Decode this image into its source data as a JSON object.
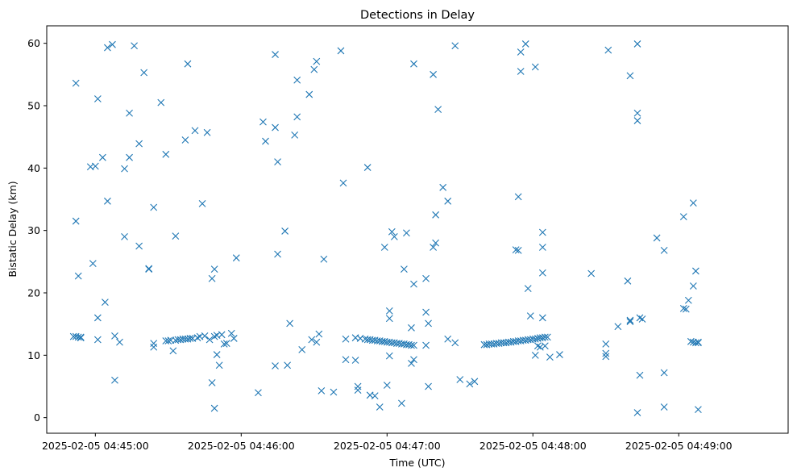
{
  "chart_data": {
    "type": "scatter",
    "title": "Detections in Delay",
    "xlabel": "Time (UTC)",
    "ylabel": "Bistatic Delay (km)",
    "x_tick_labels": [
      "2025-02-05 04:45:00",
      "2025-02-05 04:46:00",
      "2025-02-05 04:47:00",
      "2025-02-05 04:48:00",
      "2025-02-05 04:49:00"
    ],
    "y_ticks": [
      0,
      10,
      20,
      30,
      40,
      50,
      60
    ],
    "xlim": [
      "2025-02-05 04:44:40",
      "2025-02-05 04:49:45"
    ],
    "ylim": [
      -2.5,
      62.8
    ],
    "marker": "x",
    "color": "#1f77b4",
    "grid": false,
    "series": [
      {
        "points": [
          [
            "2025-02-05 04:44:52",
            53.6
          ],
          [
            "2025-02-05 04:44:52",
            31.5
          ],
          [
            "2025-02-05 04:44:53",
            22.7
          ],
          [
            "2025-02-05 04:44:51",
            13.0
          ],
          [
            "2025-02-05 04:44:52",
            13.0
          ],
          [
            "2025-02-05 04:44:53",
            12.9
          ],
          [
            "2025-02-05 04:44:54",
            12.9
          ],
          [
            "2025-02-05 04:44:54",
            12.8
          ],
          [
            "2025-02-05 04:44:58",
            40.2
          ],
          [
            "2025-02-05 04:44:59",
            24.7
          ],
          [
            "2025-02-05 04:45:00",
            40.3
          ],
          [
            "2025-02-05 04:45:01",
            51.1
          ],
          [
            "2025-02-05 04:45:01",
            16.0
          ],
          [
            "2025-02-05 04:45:01",
            12.5
          ],
          [
            "2025-02-05 04:45:03",
            41.7
          ],
          [
            "2025-02-05 04:45:04",
            18.5
          ],
          [
            "2025-02-05 04:45:05",
            59.3
          ],
          [
            "2025-02-05 04:45:05",
            34.7
          ],
          [
            "2025-02-05 04:45:07",
            59.8
          ],
          [
            "2025-02-05 04:45:08",
            6.0
          ],
          [
            "2025-02-05 04:45:08",
            13.1
          ],
          [
            "2025-02-05 04:45:10",
            12.1
          ],
          [
            "2025-02-05 04:45:12",
            39.9
          ],
          [
            "2025-02-05 04:45:12",
            29.0
          ],
          [
            "2025-02-05 04:45:14",
            48.8
          ],
          [
            "2025-02-05 04:45:14",
            41.7
          ],
          [
            "2025-02-05 04:45:16",
            59.6
          ],
          [
            "2025-02-05 04:45:18",
            43.9
          ],
          [
            "2025-02-05 04:45:18",
            27.5
          ],
          [
            "2025-02-05 04:45:20",
            55.3
          ],
          [
            "2025-02-05 04:45:22",
            23.8
          ],
          [
            "2025-02-05 04:45:22",
            23.9
          ],
          [
            "2025-02-05 04:45:24",
            33.7
          ],
          [
            "2025-02-05 04:45:24",
            11.9
          ],
          [
            "2025-02-05 04:45:24",
            11.3
          ],
          [
            "2025-02-05 04:45:27",
            50.5
          ],
          [
            "2025-02-05 04:45:29",
            42.2
          ],
          [
            "2025-02-05 04:45:29",
            12.3
          ],
          [
            "2025-02-05 04:45:30",
            12.3
          ],
          [
            "2025-02-05 04:45:31",
            12.4
          ],
          [
            "2025-02-05 04:45:32",
            10.7
          ],
          [
            "2025-02-05 04:45:33",
            12.4
          ],
          [
            "2025-02-05 04:45:34",
            12.5
          ],
          [
            "2025-02-05 04:45:35",
            12.5
          ],
          [
            "2025-02-05 04:45:36",
            12.6
          ],
          [
            "2025-02-05 04:45:37",
            12.6
          ],
          [
            "2025-02-05 04:45:38",
            12.6
          ],
          [
            "2025-02-05 04:45:39",
            12.7
          ],
          [
            "2025-02-05 04:45:40",
            12.7
          ],
          [
            "2025-02-05 04:45:33",
            29.1
          ],
          [
            "2025-02-05 04:45:37",
            44.5
          ],
          [
            "2025-02-05 04:45:38",
            56.7
          ],
          [
            "2025-02-05 04:45:41",
            46.0
          ],
          [
            "2025-02-05 04:45:42",
            12.8
          ],
          [
            "2025-02-05 04:45:43",
            13.0
          ],
          [
            "2025-02-05 04:45:44",
            34.3
          ],
          [
            "2025-02-05 04:45:45",
            13.1
          ],
          [
            "2025-02-05 04:45:46",
            45.7
          ],
          [
            "2025-02-05 04:45:47",
            12.5
          ],
          [
            "2025-02-05 04:45:48",
            22.3
          ],
          [
            "2025-02-05 04:45:48",
            5.6
          ],
          [
            "2025-02-05 04:45:49",
            23.8
          ],
          [
            "2025-02-05 04:45:49",
            13.0
          ],
          [
            "2025-02-05 04:45:49",
            1.5
          ],
          [
            "2025-02-05 04:45:50",
            10.1
          ],
          [
            "2025-02-05 04:45:50",
            13.2
          ],
          [
            "2025-02-05 04:45:51",
            8.4
          ],
          [
            "2025-02-05 04:45:52",
            13.3
          ],
          [
            "2025-02-05 04:45:53",
            11.8
          ],
          [
            "2025-02-05 04:45:54",
            11.9
          ],
          [
            "2025-02-05 04:45:56",
            13.5
          ],
          [
            "2025-02-05 04:45:57",
            12.7
          ],
          [
            "2025-02-05 04:45:58",
            25.6
          ],
          [
            "2025-02-05 04:46:07",
            4.0
          ],
          [
            "2025-02-05 04:46:09",
            47.4
          ],
          [
            "2025-02-05 04:46:10",
            44.3
          ],
          [
            "2025-02-05 04:46:14",
            58.2
          ],
          [
            "2025-02-05 04:46:14",
            46.5
          ],
          [
            "2025-02-05 04:46:14",
            8.3
          ],
          [
            "2025-02-05 04:46:15",
            41.0
          ],
          [
            "2025-02-05 04:46:15",
            26.2
          ],
          [
            "2025-02-05 04:46:18",
            29.9
          ],
          [
            "2025-02-05 04:46:19",
            8.4
          ],
          [
            "2025-02-05 04:46:20",
            15.1
          ],
          [
            "2025-02-05 04:46:22",
            45.3
          ],
          [
            "2025-02-05 04:46:23",
            54.1
          ],
          [
            "2025-02-05 04:46:23",
            48.2
          ],
          [
            "2025-02-05 04:46:25",
            10.9
          ],
          [
            "2025-02-05 04:46:28",
            51.8
          ],
          [
            "2025-02-05 04:46:29",
            12.5
          ],
          [
            "2025-02-05 04:46:30",
            55.8
          ],
          [
            "2025-02-05 04:46:31",
            57.1
          ],
          [
            "2025-02-05 04:46:31",
            12.1
          ],
          [
            "2025-02-05 04:46:32",
            13.4
          ],
          [
            "2025-02-05 04:46:33",
            4.3
          ],
          [
            "2025-02-05 04:46:34",
            25.4
          ],
          [
            "2025-02-05 04:46:38",
            4.1
          ],
          [
            "2025-02-05 04:46:41",
            58.8
          ],
          [
            "2025-02-05 04:46:42",
            37.6
          ],
          [
            "2025-02-05 04:46:43",
            12.6
          ],
          [
            "2025-02-05 04:46:43",
            9.3
          ],
          [
            "2025-02-05 04:46:47",
            12.8
          ],
          [
            "2025-02-05 04:46:47",
            9.2
          ],
          [
            "2025-02-05 04:46:48",
            4.4
          ],
          [
            "2025-02-05 04:46:48",
            5.0
          ],
          [
            "2025-02-05 04:46:49",
            12.7
          ],
          [
            "2025-02-05 04:46:51",
            12.6
          ],
          [
            "2025-02-05 04:46:52",
            40.1
          ],
          [
            "2025-02-05 04:46:53",
            3.6
          ],
          [
            "2025-02-05 04:46:55",
            3.5
          ],
          [
            "2025-02-05 04:46:57",
            1.7
          ],
          [
            "2025-02-05 04:46:52",
            12.5
          ],
          [
            "2025-02-05 04:46:53",
            12.5
          ],
          [
            "2025-02-05 04:46:54",
            12.4
          ],
          [
            "2025-02-05 04:46:55",
            12.4
          ],
          [
            "2025-02-05 04:46:56",
            12.3
          ],
          [
            "2025-02-05 04:46:57",
            12.3
          ],
          [
            "2025-02-05 04:46:58",
            12.2
          ],
          [
            "2025-02-05 04:46:59",
            12.2
          ],
          [
            "2025-02-05 04:47:00",
            12.1
          ],
          [
            "2025-02-05 04:47:01",
            12.1
          ],
          [
            "2025-02-05 04:47:02",
            12.0
          ],
          [
            "2025-02-05 04:47:03",
            12.0
          ],
          [
            "2025-02-05 04:47:04",
            11.9
          ],
          [
            "2025-02-05 04:47:05",
            11.9
          ],
          [
            "2025-02-05 04:47:06",
            11.8
          ],
          [
            "2025-02-05 04:47:07",
            11.8
          ],
          [
            "2025-02-05 04:47:08",
            11.7
          ],
          [
            "2025-02-05 04:47:09",
            11.7
          ],
          [
            "2025-02-05 04:47:10",
            11.6
          ],
          [
            "2025-02-05 04:47:11",
            11.6
          ],
          [
            "2025-02-05 04:46:59",
            27.3
          ],
          [
            "2025-02-05 04:47:00",
            5.2
          ],
          [
            "2025-02-05 04:47:01",
            17.1
          ],
          [
            "2025-02-05 04:47:01",
            15.9
          ],
          [
            "2025-02-05 04:47:01",
            9.9
          ],
          [
            "2025-02-05 04:47:02",
            29.8
          ],
          [
            "2025-02-05 04:47:03",
            29.0
          ],
          [
            "2025-02-05 04:47:06",
            2.3
          ],
          [
            "2025-02-05 04:47:07",
            23.8
          ],
          [
            "2025-02-05 04:47:08",
            29.6
          ],
          [
            "2025-02-05 04:47:10",
            14.4
          ],
          [
            "2025-02-05 04:47:10",
            8.7
          ],
          [
            "2025-02-05 04:47:11",
            9.3
          ],
          [
            "2025-02-05 04:47:11",
            21.4
          ],
          [
            "2025-02-05 04:47:11",
            56.7
          ],
          [
            "2025-02-05 04:47:16",
            16.9
          ],
          [
            "2025-02-05 04:47:16",
            22.3
          ],
          [
            "2025-02-05 04:47:16",
            11.6
          ],
          [
            "2025-02-05 04:47:17",
            15.1
          ],
          [
            "2025-02-05 04:47:17",
            5.0
          ],
          [
            "2025-02-05 04:47:19",
            55.0
          ],
          [
            "2025-02-05 04:47:19",
            27.3
          ],
          [
            "2025-02-05 04:47:20",
            28.0
          ],
          [
            "2025-02-05 04:47:20",
            32.5
          ],
          [
            "2025-02-05 04:47:21",
            49.4
          ],
          [
            "2025-02-05 04:47:23",
            36.9
          ],
          [
            "2025-02-05 04:47:25",
            34.7
          ],
          [
            "2025-02-05 04:47:25",
            12.6
          ],
          [
            "2025-02-05 04:47:28",
            59.6
          ],
          [
            "2025-02-05 04:47:28",
            12.0
          ],
          [
            "2025-02-05 04:47:30",
            6.1
          ],
          [
            "2025-02-05 04:47:34",
            5.4
          ],
          [
            "2025-02-05 04:47:36",
            5.8
          ],
          [
            "2025-02-05 04:47:40",
            11.7
          ],
          [
            "2025-02-05 04:47:41",
            11.7
          ],
          [
            "2025-02-05 04:47:42",
            11.8
          ],
          [
            "2025-02-05 04:47:43",
            11.8
          ],
          [
            "2025-02-05 04:47:44",
            11.8
          ],
          [
            "2025-02-05 04:47:45",
            11.9
          ],
          [
            "2025-02-05 04:47:46",
            11.9
          ],
          [
            "2025-02-05 04:47:47",
            12.0
          ],
          [
            "2025-02-05 04:47:48",
            12.0
          ],
          [
            "2025-02-05 04:47:49",
            12.0
          ],
          [
            "2025-02-05 04:47:50",
            12.1
          ],
          [
            "2025-02-05 04:47:51",
            12.1
          ],
          [
            "2025-02-05 04:47:52",
            12.2
          ],
          [
            "2025-02-05 04:47:53",
            12.2
          ],
          [
            "2025-02-05 04:47:54",
            12.3
          ],
          [
            "2025-02-05 04:47:55",
            12.3
          ],
          [
            "2025-02-05 04:47:56",
            12.4
          ],
          [
            "2025-02-05 04:47:57",
            12.4
          ],
          [
            "2025-02-05 04:47:58",
            12.5
          ],
          [
            "2025-02-05 04:47:59",
            12.5
          ],
          [
            "2025-02-05 04:48:00",
            12.6
          ],
          [
            "2025-02-05 04:48:01",
            12.6
          ],
          [
            "2025-02-05 04:48:02",
            12.7
          ],
          [
            "2025-02-05 04:48:03",
            12.8
          ],
          [
            "2025-02-05 04:48:04",
            12.8
          ],
          [
            "2025-02-05 04:48:05",
            12.9
          ],
          [
            "2025-02-05 04:48:06",
            12.9
          ],
          [
            "2025-02-05 04:47:53",
            26.9
          ],
          [
            "2025-02-05 04:47:54",
            26.8
          ],
          [
            "2025-02-05 04:47:54",
            35.4
          ],
          [
            "2025-02-05 04:47:55",
            55.5
          ],
          [
            "2025-02-05 04:47:55",
            58.6
          ],
          [
            "2025-02-05 04:47:57",
            59.9
          ],
          [
            "2025-02-05 04:47:58",
            20.7
          ],
          [
            "2025-02-05 04:47:59",
            16.3
          ],
          [
            "2025-02-05 04:48:01",
            56.2
          ],
          [
            "2025-02-05 04:48:01",
            10.0
          ],
          [
            "2025-02-05 04:48:02",
            11.5
          ],
          [
            "2025-02-05 04:48:03",
            11.3
          ],
          [
            "2025-02-05 04:48:04",
            29.7
          ],
          [
            "2025-02-05 04:48:04",
            27.3
          ],
          [
            "2025-02-05 04:48:04",
            23.2
          ],
          [
            "2025-02-05 04:48:04",
            16.0
          ],
          [
            "2025-02-05 04:48:05",
            11.5
          ],
          [
            "2025-02-05 04:48:07",
            9.7
          ],
          [
            "2025-02-05 04:48:11",
            10.1
          ],
          [
            "2025-02-05 04:48:24",
            23.1
          ],
          [
            "2025-02-05 04:48:30",
            10.3
          ],
          [
            "2025-02-05 04:48:30",
            9.8
          ],
          [
            "2025-02-05 04:48:30",
            11.8
          ],
          [
            "2025-02-05 04:48:31",
            58.9
          ],
          [
            "2025-02-05 04:48:35",
            14.6
          ],
          [
            "2025-02-05 04:48:39",
            21.9
          ],
          [
            "2025-02-05 04:48:40",
            15.4
          ],
          [
            "2025-02-05 04:48:40",
            15.6
          ],
          [
            "2025-02-05 04:48:40",
            54.8
          ],
          [
            "2025-02-05 04:48:43",
            59.9
          ],
          [
            "2025-02-05 04:48:43",
            48.8
          ],
          [
            "2025-02-05 04:48:43",
            47.6
          ],
          [
            "2025-02-05 04:48:44",
            6.8
          ],
          [
            "2025-02-05 04:48:44",
            16.0
          ],
          [
            "2025-02-05 04:48:45",
            15.8
          ],
          [
            "2025-02-05 04:48:43",
            0.8
          ],
          [
            "2025-02-05 04:48:51",
            28.8
          ],
          [
            "2025-02-05 04:48:54",
            26.8
          ],
          [
            "2025-02-05 04:48:54",
            7.2
          ],
          [
            "2025-02-05 04:48:54",
            1.7
          ],
          [
            "2025-02-05 04:49:02",
            32.2
          ],
          [
            "2025-02-05 04:49:02",
            17.5
          ],
          [
            "2025-02-05 04:49:03",
            17.4
          ],
          [
            "2025-02-05 04:49:04",
            18.8
          ],
          [
            "2025-02-05 04:49:05",
            12.2
          ],
          [
            "2025-02-05 04:49:06",
            34.4
          ],
          [
            "2025-02-05 04:49:06",
            21.1
          ],
          [
            "2025-02-05 04:49:07",
            23.5
          ],
          [
            "2025-02-05 04:49:06",
            12.1
          ],
          [
            "2025-02-05 04:49:07",
            12.0
          ],
          [
            "2025-02-05 04:49:08",
            12.1
          ],
          [
            "2025-02-05 04:49:08",
            12.0
          ],
          [
            "2025-02-05 04:49:08",
            1.3
          ]
        ]
      }
    ]
  }
}
